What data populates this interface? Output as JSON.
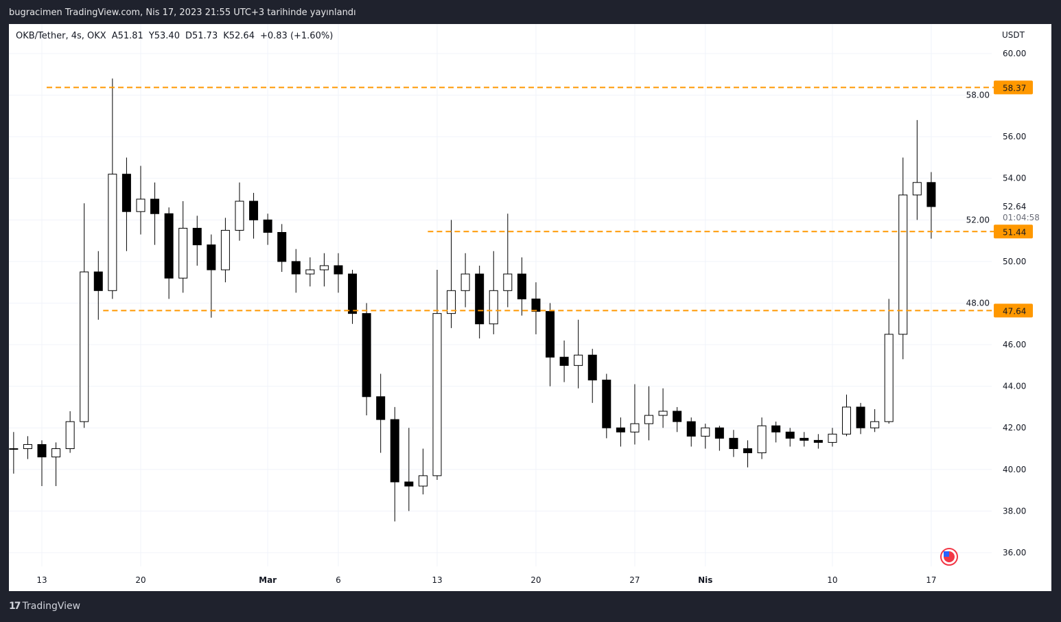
{
  "published": "bugracimen TradingView.com, Nis 17, 2023 21:55 UTC+3 tarihinde yayınlandı",
  "legend": {
    "symbol": "OKB/Tether, 4s, OKX",
    "open": "A51.81",
    "high": "Y53.40",
    "low": "D51.73",
    "close": "K52.64",
    "change": "+0.83 (+1.60%)"
  },
  "footer": {
    "brand": "TradingView",
    "logo_icon": "tradingview-logo-icon"
  },
  "colors": {
    "background": "#1f222d",
    "panel": "#ffffff",
    "level": "#ff9800",
    "candle_up": "#ffffff",
    "candle_down": "#000000",
    "wick": "#000000"
  },
  "chart_data": {
    "type": "candlestick",
    "currency": "USDT",
    "ylim": [
      35,
      61
    ],
    "y_ticks": [
      "60.00",
      "58.00",
      "56.00",
      "54.00",
      "52.00",
      "50.00",
      "48.00",
      "46.00",
      "44.00",
      "42.00",
      "40.00",
      "38.00",
      "36.00"
    ],
    "x_ticks": [
      {
        "date": "2023-02-13",
        "label": "13"
      },
      {
        "date": "2023-02-20",
        "label": "20"
      },
      {
        "date": "2023-03-01",
        "label": "Mar",
        "bold": true
      },
      {
        "date": "2023-03-06",
        "label": "6"
      },
      {
        "date": "2023-03-13",
        "label": "13"
      },
      {
        "date": "2023-03-20",
        "label": "20"
      },
      {
        "date": "2023-03-27",
        "label": "27"
      },
      {
        "date": "2023-04-01",
        "label": "Nis",
        "bold": true
      },
      {
        "date": "2023-04-10",
        "label": "10"
      },
      {
        "date": "2023-04-17",
        "label": "17"
      }
    ],
    "grid": true,
    "last_price": {
      "value": 52.64,
      "label": "52.64",
      "countdown": "01:04:58"
    },
    "levels": [
      {
        "value": 58.37,
        "label": "58.37",
        "from": "2023-02-13"
      },
      {
        "value": 51.44,
        "label": "51.44",
        "from": "2023-03-12"
      },
      {
        "value": 47.64,
        "label": "47.64",
        "from": "2023-02-17"
      }
    ],
    "candles": [
      [
        "2023-02-11",
        41.0,
        41.8,
        39.8,
        41.0
      ],
      [
        "2023-02-12",
        41.0,
        41.6,
        40.5,
        41.2
      ],
      [
        "2023-02-13",
        41.2,
        41.4,
        39.2,
        40.6
      ],
      [
        "2023-02-14",
        40.6,
        41.3,
        39.2,
        41.0
      ],
      [
        "2023-02-15",
        41.0,
        42.8,
        40.8,
        42.3
      ],
      [
        "2023-02-16",
        42.3,
        52.8,
        42.0,
        49.5
      ],
      [
        "2023-02-17",
        49.5,
        50.5,
        47.2,
        48.6
      ],
      [
        "2023-02-18",
        48.6,
        58.8,
        48.2,
        54.2
      ],
      [
        "2023-02-19",
        54.2,
        55.0,
        50.5,
        52.4
      ],
      [
        "2023-02-20",
        52.4,
        54.6,
        51.3,
        53.0
      ],
      [
        "2023-02-21",
        53.0,
        53.8,
        50.8,
        52.3
      ],
      [
        "2023-02-22",
        52.3,
        52.6,
        48.2,
        49.2
      ],
      [
        "2023-02-23",
        49.2,
        52.9,
        48.5,
        51.6
      ],
      [
        "2023-02-24",
        51.6,
        52.2,
        49.8,
        50.8
      ],
      [
        "2023-02-25",
        50.8,
        51.3,
        47.3,
        49.6
      ],
      [
        "2023-02-26",
        49.6,
        52.1,
        49.0,
        51.5
      ],
      [
        "2023-02-27",
        51.5,
        53.8,
        51.0,
        52.9
      ],
      [
        "2023-02-28",
        52.9,
        53.3,
        51.1,
        52.0
      ],
      [
        "2023-03-01",
        52.0,
        52.3,
        50.8,
        51.4
      ],
      [
        "2023-03-02",
        51.4,
        51.8,
        49.5,
        50.0
      ],
      [
        "2023-03-03",
        50.0,
        50.6,
        48.5,
        49.4
      ],
      [
        "2023-03-04",
        49.4,
        50.2,
        48.8,
        49.6
      ],
      [
        "2023-03-05",
        49.6,
        50.4,
        48.8,
        49.8
      ],
      [
        "2023-03-06",
        49.8,
        50.4,
        48.5,
        49.4
      ],
      [
        "2023-03-07",
        49.4,
        49.6,
        47.0,
        47.5
      ],
      [
        "2023-03-08",
        47.5,
        48.0,
        42.6,
        43.5
      ],
      [
        "2023-03-09",
        43.5,
        44.6,
        40.8,
        42.4
      ],
      [
        "2023-03-10",
        42.4,
        43.0,
        37.5,
        39.4
      ],
      [
        "2023-03-11",
        39.4,
        42.0,
        38.0,
        39.2
      ],
      [
        "2023-03-12",
        39.2,
        41.0,
        38.8,
        39.7
      ],
      [
        "2023-03-13",
        39.7,
        49.6,
        39.5,
        47.5
      ],
      [
        "2023-03-14",
        47.5,
        52.0,
        46.8,
        48.6
      ],
      [
        "2023-03-15",
        48.6,
        50.4,
        47.8,
        49.4
      ],
      [
        "2023-03-16",
        49.4,
        49.8,
        46.3,
        47.0
      ],
      [
        "2023-03-17",
        47.0,
        50.5,
        46.5,
        48.6
      ],
      [
        "2023-03-18",
        48.6,
        52.3,
        47.8,
        49.4
      ],
      [
        "2023-03-19",
        49.4,
        50.2,
        47.4,
        48.2
      ],
      [
        "2023-03-20",
        48.2,
        49.0,
        46.5,
        47.6
      ],
      [
        "2023-03-21",
        47.6,
        48.0,
        44.0,
        45.4
      ],
      [
        "2023-03-22",
        45.4,
        46.2,
        44.2,
        45.0
      ],
      [
        "2023-03-23",
        45.0,
        47.2,
        43.9,
        45.5
      ],
      [
        "2023-03-24",
        45.5,
        45.8,
        43.2,
        44.3
      ],
      [
        "2023-03-25",
        44.3,
        44.6,
        41.5,
        42.0
      ],
      [
        "2023-03-26",
        42.0,
        42.5,
        41.1,
        41.8
      ],
      [
        "2023-03-27",
        41.8,
        44.1,
        41.2,
        42.2
      ],
      [
        "2023-03-28",
        42.2,
        44.0,
        41.4,
        42.6
      ],
      [
        "2023-03-29",
        42.6,
        43.9,
        42.0,
        42.8
      ],
      [
        "2023-03-30",
        42.8,
        43.0,
        41.8,
        42.3
      ],
      [
        "2023-03-31",
        42.3,
        42.5,
        41.1,
        41.6
      ],
      [
        "2023-04-01",
        41.6,
        42.2,
        41.0,
        42.0
      ],
      [
        "2023-04-02",
        42.0,
        42.1,
        40.9,
        41.5
      ],
      [
        "2023-04-03",
        41.5,
        41.9,
        40.6,
        41.0
      ],
      [
        "2023-04-04",
        41.0,
        41.4,
        40.1,
        40.8
      ],
      [
        "2023-04-05",
        40.8,
        42.5,
        40.5,
        42.1
      ],
      [
        "2023-04-06",
        42.1,
        42.3,
        41.3,
        41.8
      ],
      [
        "2023-04-07",
        41.8,
        42.0,
        41.1,
        41.5
      ],
      [
        "2023-04-08",
        41.5,
        41.8,
        41.1,
        41.4
      ],
      [
        "2023-04-09",
        41.4,
        41.7,
        41.0,
        41.3
      ],
      [
        "2023-04-10",
        41.3,
        42.0,
        41.1,
        41.7
      ],
      [
        "2023-04-11",
        41.7,
        43.6,
        41.6,
        43.0
      ],
      [
        "2023-04-12",
        43.0,
        43.2,
        41.7,
        42.0
      ],
      [
        "2023-04-13",
        42.0,
        42.9,
        41.8,
        42.3
      ],
      [
        "2023-04-14",
        42.3,
        48.2,
        42.2,
        46.5
      ],
      [
        "2023-04-15",
        46.5,
        55.0,
        45.3,
        53.2
      ],
      [
        "2023-04-16",
        53.2,
        56.8,
        52.0,
        53.8
      ],
      [
        "2023-04-17",
        53.8,
        54.3,
        51.1,
        52.64
      ]
    ],
    "event_icon": "us-flag-icon"
  }
}
